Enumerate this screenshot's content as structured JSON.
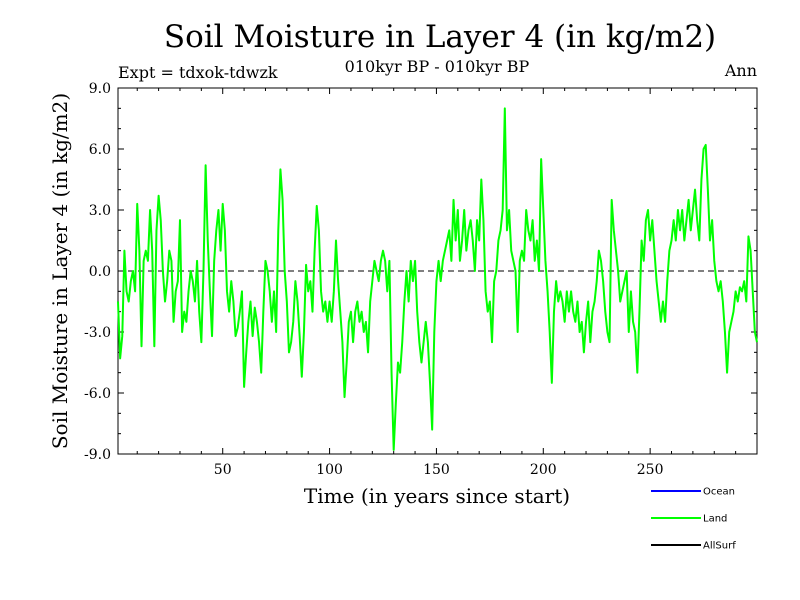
{
  "chart_data": {
    "type": "line",
    "title": "Soil Moisture in Layer 4 (in kg/m2)",
    "subtitle": "010kyr BP - 010kyr BP",
    "expt_label": "Expt = tdxok-tdwzk",
    "period_label": "Ann",
    "xlabel": "Time (in years since start)",
    "ylabel": "Soil Moisture in Layer 4 (in kg/m2)",
    "xlim": [
      1,
      300
    ],
    "ylim": [
      -9.0,
      9.0
    ],
    "x_ticks": [
      "50",
      "100",
      "150",
      "200",
      "250"
    ],
    "x_tick_values": [
      50,
      100,
      150,
      200,
      250
    ],
    "y_ticks": [
      "9.0",
      "6.0",
      "3.0",
      "0.0",
      "-3.0",
      "-6.0",
      "-9.0"
    ],
    "y_tick_values": [
      9,
      6,
      3,
      0,
      -3,
      -6,
      -9
    ],
    "zero_line": "dashed",
    "legend_position": "bottom-right",
    "legend": [
      {
        "name": "Ocean",
        "color": "#0000ff"
      },
      {
        "name": "Land",
        "color": "#00ff00"
      },
      {
        "name": "AllSurf",
        "color": "#000000"
      }
    ],
    "series": [
      {
        "name": "Land",
        "color": "#00ff00",
        "points": [
          [
            1,
            -1.5
          ],
          [
            2,
            -4.3
          ],
          [
            3,
            -3.2
          ],
          [
            4,
            1.0
          ],
          [
            5,
            -1.0
          ],
          [
            6,
            -1.5
          ],
          [
            7,
            -0.5
          ],
          [
            8,
            0.0
          ],
          [
            9,
            -1.0
          ],
          [
            10,
            3.3
          ],
          [
            11,
            1.0
          ],
          [
            12,
            -3.7
          ],
          [
            13,
            0.5
          ],
          [
            14,
            1.0
          ],
          [
            15,
            0.5
          ],
          [
            16,
            3.0
          ],
          [
            17,
            1.0
          ],
          [
            18,
            -3.7
          ],
          [
            19,
            2.0
          ],
          [
            20,
            3.7
          ],
          [
            21,
            2.5
          ],
          [
            22,
            0.0
          ],
          [
            23,
            -1.5
          ],
          [
            24,
            -0.5
          ],
          [
            25,
            1.0
          ],
          [
            26,
            0.5
          ],
          [
            27,
            -2.5
          ],
          [
            28,
            -1.0
          ],
          [
            29,
            -0.5
          ],
          [
            30,
            2.5
          ],
          [
            31,
            -3.0
          ],
          [
            32,
            -2.0
          ],
          [
            33,
            -2.5
          ],
          [
            34,
            -1.0
          ],
          [
            35,
            0.0
          ],
          [
            36,
            -0.5
          ],
          [
            37,
            -1.5
          ],
          [
            38,
            0.5
          ],
          [
            39,
            -2.0
          ],
          [
            40,
            -3.5
          ],
          [
            41,
            0.0
          ],
          [
            42,
            5.2
          ],
          [
            43,
            1.5
          ],
          [
            44,
            -1.0
          ],
          [
            45,
            -3.2
          ],
          [
            46,
            0.5
          ],
          [
            47,
            2.0
          ],
          [
            48,
            3.0
          ],
          [
            49,
            1.0
          ],
          [
            50,
            3.3
          ],
          [
            51,
            2.0
          ],
          [
            52,
            -1.0
          ],
          [
            53,
            -2.0
          ],
          [
            54,
            -0.5
          ],
          [
            55,
            -1.5
          ],
          [
            56,
            -3.2
          ],
          [
            57,
            -2.8
          ],
          [
            58,
            -2.0
          ],
          [
            59,
            -1.0
          ],
          [
            60,
            -5.7
          ],
          [
            61,
            -4.0
          ],
          [
            62,
            -2.5
          ],
          [
            63,
            -1.5
          ],
          [
            64,
            -3.2
          ],
          [
            65,
            -1.8
          ],
          [
            66,
            -2.5
          ],
          [
            67,
            -3.5
          ],
          [
            68,
            -5.0
          ],
          [
            69,
            -2.0
          ],
          [
            70,
            0.5
          ],
          [
            71,
            0.0
          ],
          [
            72,
            -1.0
          ],
          [
            73,
            -2.5
          ],
          [
            74,
            -1.0
          ],
          [
            75,
            -3.0
          ],
          [
            76,
            2.0
          ],
          [
            77,
            5.0
          ],
          [
            78,
            3.5
          ],
          [
            79,
            0.0
          ],
          [
            80,
            -1.5
          ],
          [
            81,
            -4.0
          ],
          [
            82,
            -3.5
          ],
          [
            83,
            -2.5
          ],
          [
            84,
            -0.5
          ],
          [
            85,
            -1.5
          ],
          [
            86,
            -3.2
          ],
          [
            87,
            -5.2
          ],
          [
            88,
            -3.0
          ],
          [
            89,
            0.3
          ],
          [
            90,
            -1.0
          ],
          [
            91,
            -0.5
          ],
          [
            92,
            -2.0
          ],
          [
            93,
            1.0
          ],
          [
            94,
            3.2
          ],
          [
            95,
            2.0
          ],
          [
            96,
            -1.0
          ],
          [
            97,
            -2.0
          ],
          [
            98,
            -1.5
          ],
          [
            99,
            -2.5
          ],
          [
            100,
            -1.5
          ],
          [
            101,
            -2.5
          ],
          [
            102,
            -1.0
          ],
          [
            103,
            1.5
          ],
          [
            104,
            -0.5
          ],
          [
            105,
            -2.0
          ],
          [
            106,
            -3.5
          ],
          [
            107,
            -6.2
          ],
          [
            108,
            -4.5
          ],
          [
            109,
            -2.5
          ],
          [
            110,
            -2.0
          ],
          [
            111,
            -3.5
          ],
          [
            112,
            -2.0
          ],
          [
            113,
            -1.5
          ],
          [
            114,
            -2.5
          ],
          [
            115,
            -2.0
          ],
          [
            116,
            -3.0
          ],
          [
            117,
            -2.5
          ],
          [
            118,
            -4.0
          ],
          [
            119,
            -1.5
          ],
          [
            120,
            -0.5
          ],
          [
            121,
            0.5
          ],
          [
            122,
            0.0
          ],
          [
            123,
            -0.5
          ],
          [
            124,
            0.5
          ],
          [
            125,
            1.0
          ],
          [
            126,
            0.5
          ],
          [
            127,
            -1.0
          ],
          [
            128,
            0.5
          ],
          [
            129,
            -5.0
          ],
          [
            130,
            -8.8
          ],
          [
            131,
            -6.5
          ],
          [
            132,
            -4.5
          ],
          [
            133,
            -5.0
          ],
          [
            134,
            -3.5
          ],
          [
            135,
            -1.5
          ],
          [
            136,
            0.0
          ],
          [
            137,
            -1.5
          ],
          [
            138,
            0.5
          ],
          [
            139,
            -0.5
          ],
          [
            140,
            0.5
          ],
          [
            141,
            -2.0
          ],
          [
            142,
            -3.5
          ],
          [
            143,
            -4.5
          ],
          [
            144,
            -3.5
          ],
          [
            145,
            -2.5
          ],
          [
            146,
            -3.5
          ],
          [
            147,
            -5.5
          ],
          [
            148,
            -7.8
          ],
          [
            149,
            -3.0
          ],
          [
            150,
            -0.5
          ],
          [
            151,
            0.5
          ],
          [
            152,
            -0.5
          ],
          [
            153,
            0.5
          ],
          [
            154,
            1.0
          ],
          [
            155,
            1.5
          ],
          [
            156,
            2.0
          ],
          [
            157,
            0.5
          ],
          [
            158,
            3.5
          ],
          [
            159,
            1.5
          ],
          [
            160,
            3.0
          ],
          [
            161,
            0.5
          ],
          [
            162,
            1.5
          ],
          [
            163,
            3.0
          ],
          [
            164,
            1.0
          ],
          [
            165,
            2.0
          ],
          [
            166,
            2.5
          ],
          [
            167,
            1.5
          ],
          [
            168,
            0.0
          ],
          [
            169,
            2.5
          ],
          [
            170,
            1.5
          ],
          [
            171,
            4.5
          ],
          [
            172,
            2.5
          ],
          [
            173,
            -1.0
          ],
          [
            174,
            -2.0
          ],
          [
            175,
            -1.5
          ],
          [
            176,
            -3.5
          ],
          [
            177,
            -0.5
          ],
          [
            178,
            0.0
          ],
          [
            179,
            1.5
          ],
          [
            180,
            2.0
          ],
          [
            181,
            3.0
          ],
          [
            182,
            8.0
          ],
          [
            183,
            2.0
          ],
          [
            184,
            3.0
          ],
          [
            185,
            1.0
          ],
          [
            186,
            0.5
          ],
          [
            187,
            0.0
          ],
          [
            188,
            -3.0
          ],
          [
            189,
            0.5
          ],
          [
            190,
            1.0
          ],
          [
            191,
            0.5
          ],
          [
            192,
            3.0
          ],
          [
            193,
            2.0
          ],
          [
            194,
            1.5
          ],
          [
            195,
            2.5
          ],
          [
            196,
            0.5
          ],
          [
            197,
            1.5
          ],
          [
            198,
            0.0
          ],
          [
            199,
            5.5
          ],
          [
            200,
            3.0
          ],
          [
            201,
            0.5
          ],
          [
            202,
            -1.0
          ],
          [
            203,
            -3.0
          ],
          [
            204,
            -5.5
          ],
          [
            205,
            -2.0
          ],
          [
            206,
            -0.5
          ],
          [
            207,
            -1.5
          ],
          [
            208,
            -1.0
          ],
          [
            209,
            -1.5
          ],
          [
            210,
            -2.5
          ],
          [
            211,
            -1.0
          ],
          [
            212,
            -2.0
          ],
          [
            213,
            -1.0
          ],
          [
            214,
            -2.0
          ],
          [
            215,
            -2.5
          ],
          [
            216,
            -1.5
          ],
          [
            217,
            -3.0
          ],
          [
            218,
            -2.5
          ],
          [
            219,
            -4.0
          ],
          [
            220,
            -2.5
          ],
          [
            221,
            -1.5
          ],
          [
            222,
            -3.5
          ],
          [
            223,
            -2.0
          ],
          [
            224,
            -1.5
          ],
          [
            225,
            -0.5
          ],
          [
            226,
            1.0
          ],
          [
            227,
            0.5
          ],
          [
            228,
            -0.5
          ],
          [
            229,
            -2.0
          ],
          [
            230,
            -3.0
          ],
          [
            231,
            -3.5
          ],
          [
            232,
            3.5
          ],
          [
            233,
            2.0
          ],
          [
            234,
            1.0
          ],
          [
            235,
            0.0
          ],
          [
            236,
            -1.5
          ],
          [
            237,
            -1.0
          ],
          [
            238,
            -0.5
          ],
          [
            239,
            0.0
          ],
          [
            240,
            -3.0
          ],
          [
            241,
            -1.0
          ],
          [
            242,
            -2.5
          ],
          [
            243,
            -3.0
          ],
          [
            244,
            -5.0
          ],
          [
            245,
            -2.0
          ],
          [
            246,
            1.5
          ],
          [
            247,
            0.5
          ],
          [
            248,
            2.5
          ],
          [
            249,
            3.0
          ],
          [
            250,
            1.5
          ],
          [
            251,
            2.5
          ],
          [
            252,
            1.0
          ],
          [
            253,
            -0.5
          ],
          [
            254,
            -1.5
          ],
          [
            255,
            -2.5
          ],
          [
            256,
            -1.5
          ],
          [
            257,
            -2.5
          ],
          [
            258,
            -0.5
          ],
          [
            259,
            1.0
          ],
          [
            260,
            1.5
          ],
          [
            261,
            2.5
          ],
          [
            262,
            1.5
          ],
          [
            263,
            3.0
          ],
          [
            264,
            2.0
          ],
          [
            265,
            3.0
          ],
          [
            266,
            1.5
          ],
          [
            267,
            2.5
          ],
          [
            268,
            3.5
          ],
          [
            269,
            2.0
          ],
          [
            270,
            3.0
          ],
          [
            271,
            4.0
          ],
          [
            272,
            2.5
          ],
          [
            273,
            1.5
          ],
          [
            274,
            4.5
          ],
          [
            275,
            6.0
          ],
          [
            276,
            6.2
          ],
          [
            277,
            4.0
          ],
          [
            278,
            1.5
          ],
          [
            279,
            2.5
          ],
          [
            280,
            0.5
          ],
          [
            281,
            -0.5
          ],
          [
            282,
            -1.0
          ],
          [
            283,
            -0.5
          ],
          [
            284,
            -1.5
          ],
          [
            285,
            -3.0
          ],
          [
            286,
            -5.0
          ],
          [
            287,
            -3.0
          ],
          [
            288,
            -2.5
          ],
          [
            289,
            -2.0
          ],
          [
            290,
            -1.0
          ],
          [
            291,
            -1.5
          ],
          [
            292,
            -0.8
          ],
          [
            293,
            -1.0
          ],
          [
            294,
            -0.5
          ],
          [
            295,
            -1.5
          ],
          [
            296,
            1.7
          ],
          [
            297,
            1.0
          ],
          [
            298,
            -1.0
          ],
          [
            299,
            -3.0
          ],
          [
            300,
            -3.5
          ]
        ]
      }
    ]
  }
}
